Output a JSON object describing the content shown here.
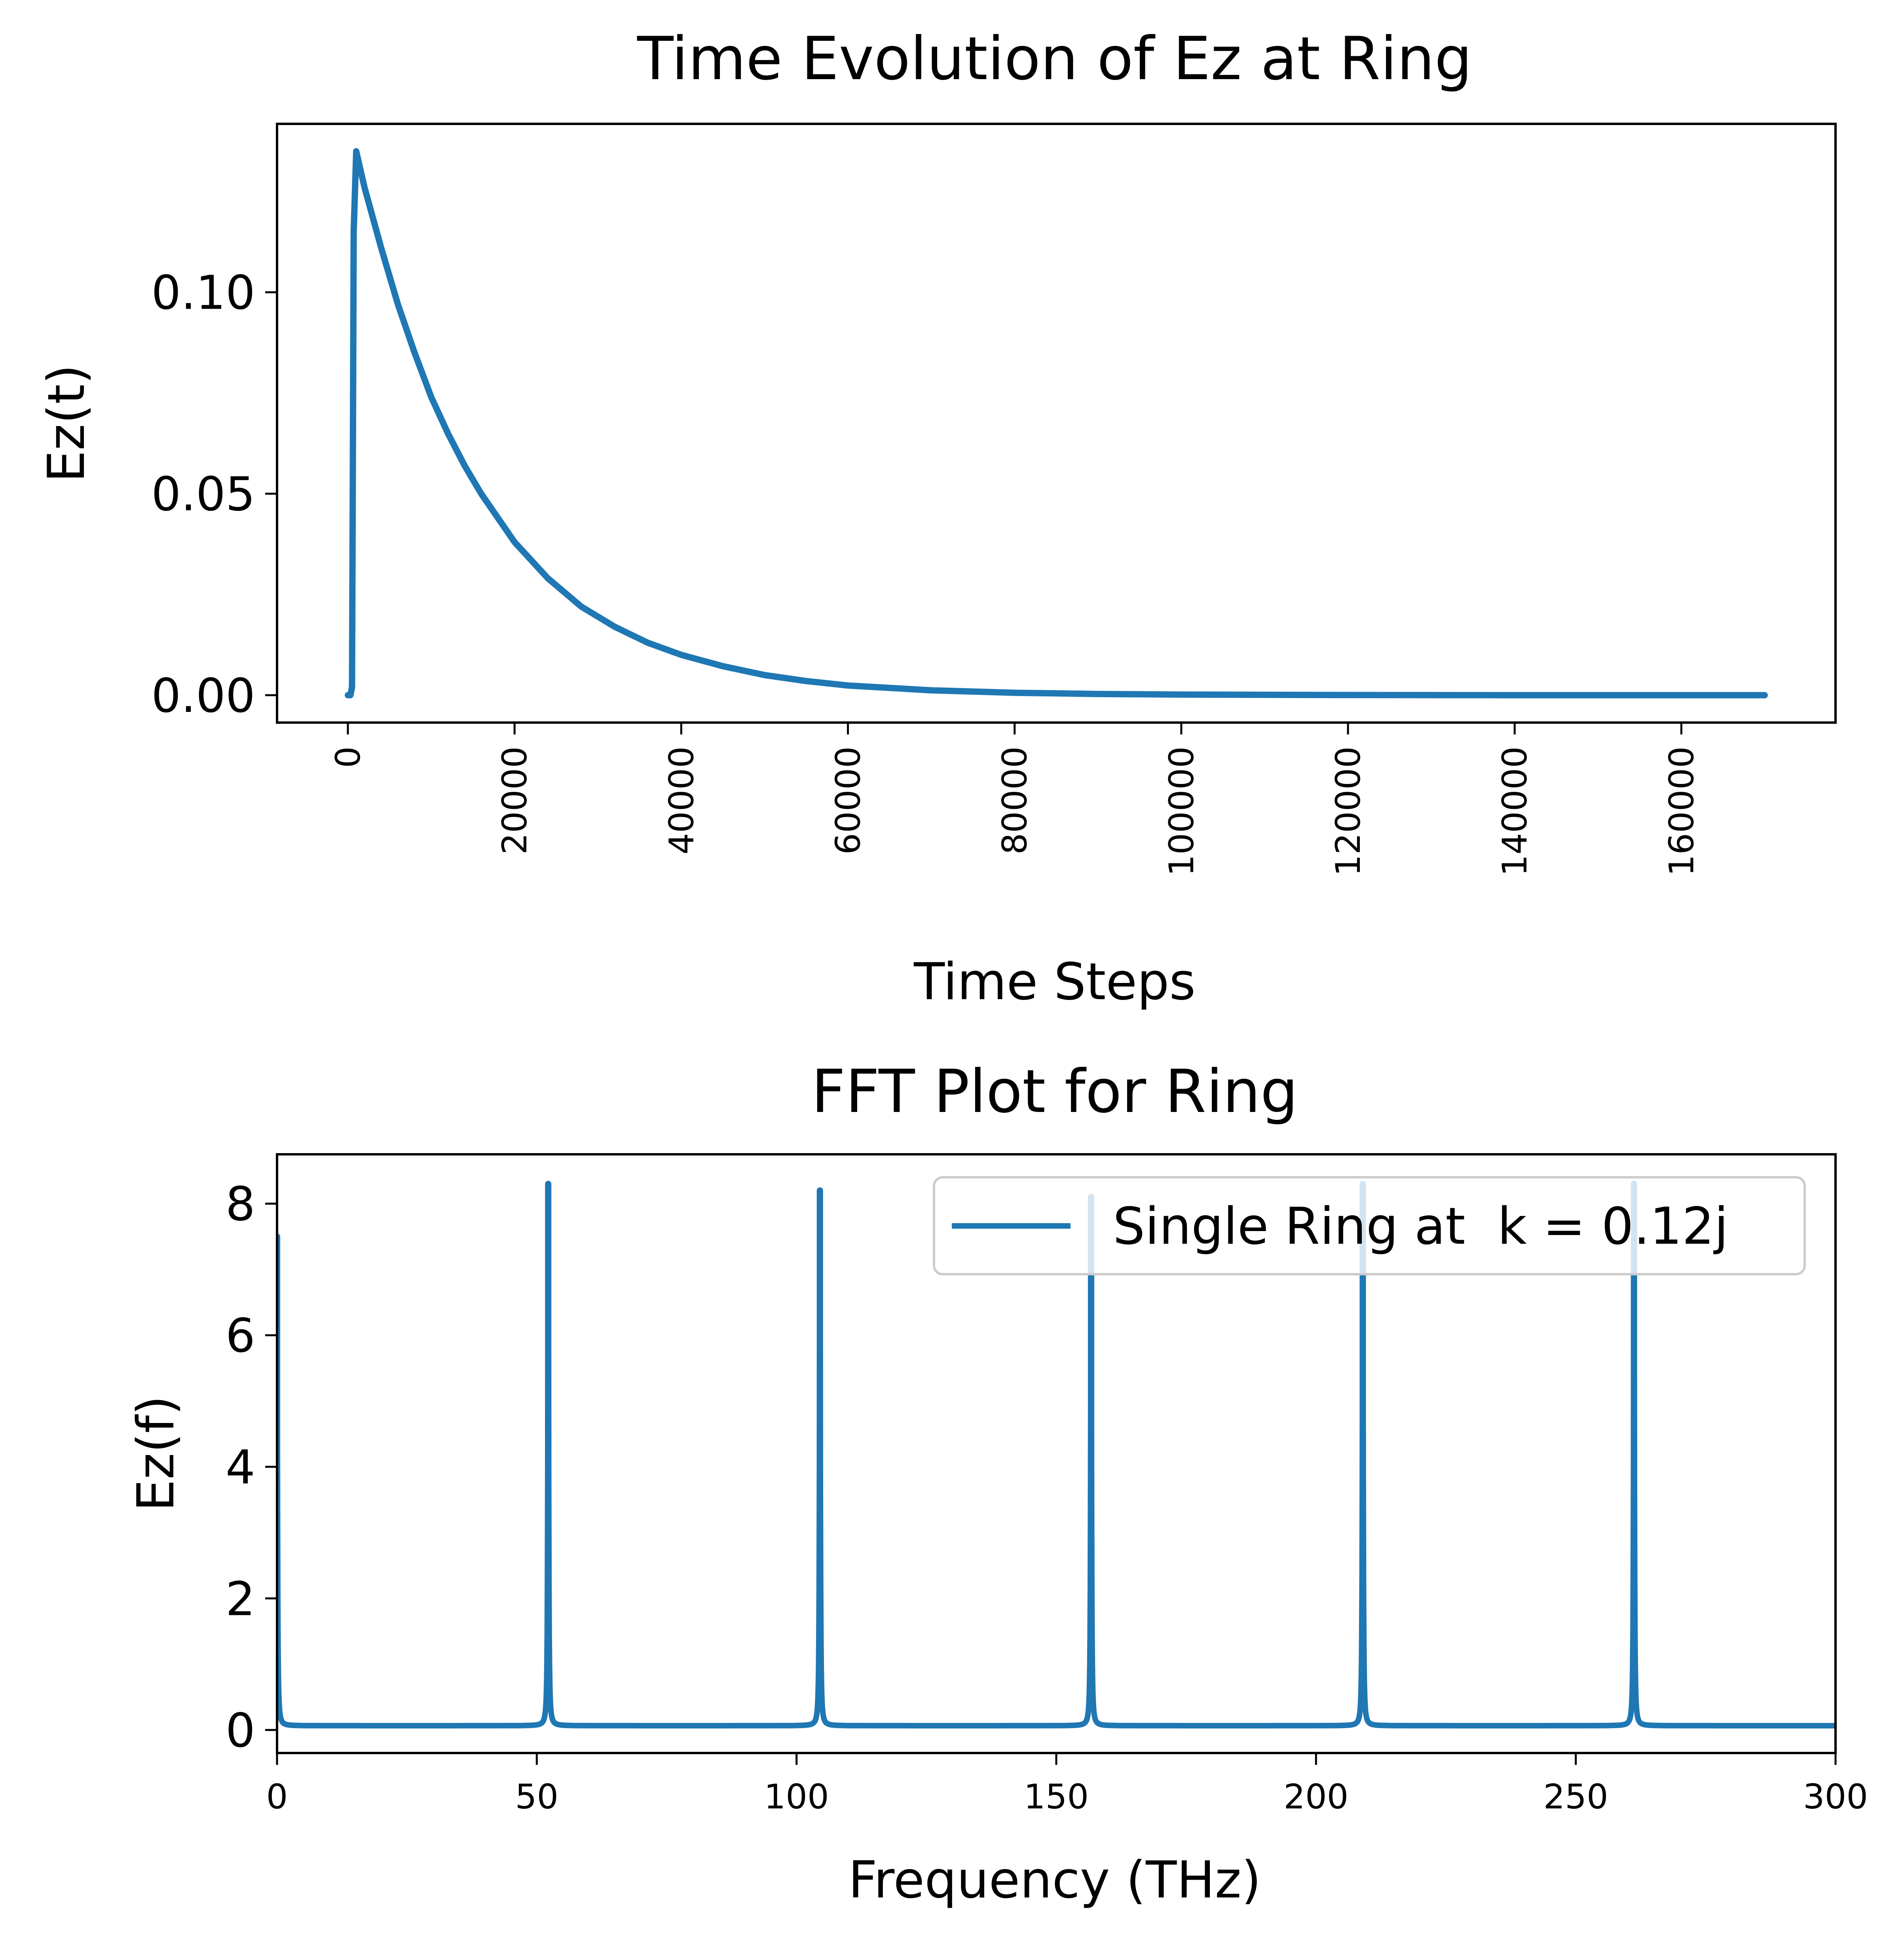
{
  "colors": {
    "series": "#1f77b4",
    "axes": "#000000",
    "background": "#ffffff",
    "legend_border": "#cccccc"
  },
  "chart_data": [
    {
      "type": "line",
      "title": "Time Evolution of Ez at Ring",
      "xlabel": "Time Steps",
      "ylabel": "Ez(t)",
      "xlim": [
        -8500,
        178500
      ],
      "ylim": [
        -0.0068,
        0.1418
      ],
      "xticks": [
        0,
        20000,
        40000,
        60000,
        80000,
        100000,
        120000,
        140000,
        160000
      ],
      "xtick_labels": [
        "0",
        "20000",
        "40000",
        "60000",
        "80000",
        "100000",
        "120000",
        "140000",
        "160000"
      ],
      "xtick_rotation": 90,
      "yticks": [
        0.0,
        0.05,
        0.1
      ],
      "ytick_labels": [
        "0.00",
        "0.05",
        "0.10"
      ],
      "grid": false,
      "legend": false,
      "series": [
        {
          "x": [
            0,
            300,
            500,
            700,
            1000,
            2000,
            4000,
            6000,
            8000,
            10000,
            12000,
            14000,
            16000,
            18000,
            20000,
            24000,
            28000,
            32000,
            36000,
            40000,
            45000,
            50000,
            55000,
            60000,
            70000,
            80000,
            90000,
            100000,
            120000,
            140000,
            160000,
            170000
          ],
          "y": [
            0.0,
            0.0,
            0.002,
            0.115,
            0.135,
            0.126,
            0.111,
            0.097,
            0.085,
            0.074,
            0.065,
            0.057,
            0.05,
            0.044,
            0.038,
            0.029,
            0.022,
            0.017,
            0.013,
            0.01,
            0.0072,
            0.005,
            0.0035,
            0.0024,
            0.0012,
            0.0006,
            0.0003,
            0.00015,
            4e-05,
            1e-05,
            0.0,
            0.0
          ]
        }
      ]
    },
    {
      "type": "line",
      "title": "FFT Plot for Ring",
      "xlabel": "Frequency (THz)",
      "ylabel": "Ez(f)",
      "xlim": [
        0,
        300
      ],
      "ylim": [
        -0.35,
        8.75
      ],
      "xticks": [
        0,
        50,
        100,
        150,
        200,
        250,
        300
      ],
      "xtick_labels": [
        "0",
        "50",
        "100",
        "150",
        "200",
        "250",
        "300"
      ],
      "yticks": [
        0,
        2,
        4,
        6,
        8
      ],
      "ytick_labels": [
        "0",
        "2",
        "4",
        "6",
        "8"
      ],
      "grid": false,
      "legend": "upper right",
      "series": [
        {
          "name": "Single Ring at  k = 0.12j",
          "baseline": 0.065,
          "peak_width": 0.09,
          "peaks": [
            {
              "x": 0.0,
              "y": 7.5
            },
            {
              "x": 52.2,
              "y": 8.3
            },
            {
              "x": 104.5,
              "y": 8.2
            },
            {
              "x": 156.7,
              "y": 8.1
            },
            {
              "x": 209.0,
              "y": 8.3
            },
            {
              "x": 261.2,
              "y": 8.3
            }
          ]
        }
      ]
    }
  ]
}
